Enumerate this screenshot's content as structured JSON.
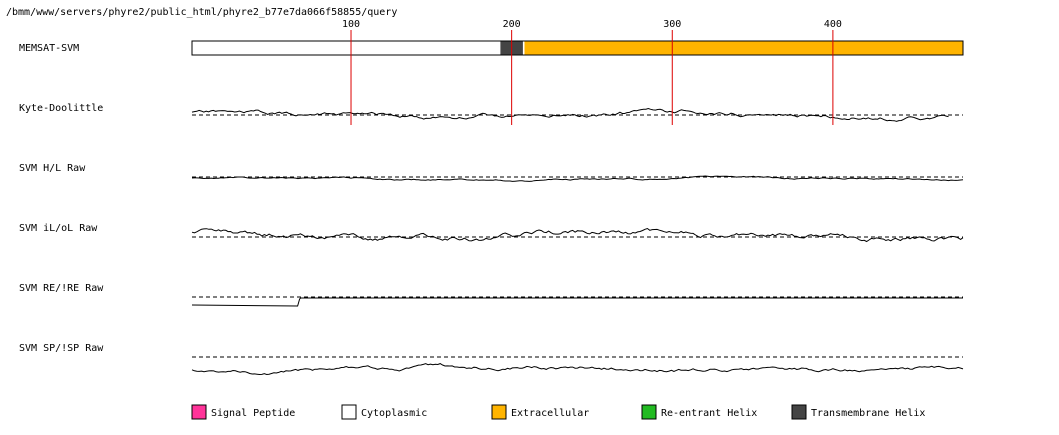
{
  "path_label": "/bmm/www/servers/phyre2/public_html/phyre2_b77e7da066f58855/query",
  "colors": {
    "signal_peptide": "#ff3399",
    "cytoplasmic": "#ffffff",
    "extracellular": "#ffb400",
    "reentrant_helix": "#22bb22",
    "transmembrane_helix": "#444444",
    "marker_line": "#dd0000",
    "trace": "#000000"
  },
  "chart_data": {
    "type": "line",
    "x_axis": {
      "ticks": [
        100,
        200,
        300,
        400
      ],
      "range": [
        1,
        481
      ]
    },
    "tracks": [
      {
        "name": "MEMSAT-SVM",
        "kind": "segments",
        "segments": [
          {
            "start": 1,
            "end": 192,
            "class": "cytoplasmic"
          },
          {
            "start": 193,
            "end": 207,
            "class": "transmembrane_helix"
          },
          {
            "start": 208,
            "end": 481,
            "class": "extracellular"
          }
        ]
      },
      {
        "name": "Kyte-Doolittle",
        "kind": "line",
        "points": 60,
        "seed": 11,
        "amp": 4.5,
        "base": 0,
        "baseline_offset": 0,
        "span": [
          1,
          472
        ]
      },
      {
        "name": "SVM H/L Raw",
        "kind": "line",
        "points": 60,
        "seed": 23,
        "amp": 1.8,
        "base": 2,
        "baseline_offset": 0,
        "span": [
          1,
          481
        ]
      },
      {
        "name": "SVM iL/oL Raw",
        "kind": "line",
        "points": 60,
        "seed": 37,
        "amp": 6,
        "base": -2,
        "baseline_offset": 0,
        "span": [
          1,
          481
        ]
      },
      {
        "name": "SVM RE/!RE Raw",
        "kind": "step",
        "low_until": 68,
        "low_value": 8,
        "high_value": 0
      },
      {
        "name": "SVM SP/!SP Raw",
        "kind": "line",
        "points": 60,
        "seed": 51,
        "amp": 4,
        "base": 12,
        "baseline_offset": 0,
        "span": [
          1,
          481
        ]
      }
    ]
  },
  "legend": [
    {
      "label": "Signal Peptide",
      "color": "#ff3399"
    },
    {
      "label": "Cytoplasmic",
      "color": "#ffffff"
    },
    {
      "label": "Extracellular",
      "color": "#ffb400"
    },
    {
      "label": "Re-entrant Helix",
      "color": "#22bb22"
    },
    {
      "label": "Transmembrane Helix",
      "color": "#444444"
    }
  ]
}
